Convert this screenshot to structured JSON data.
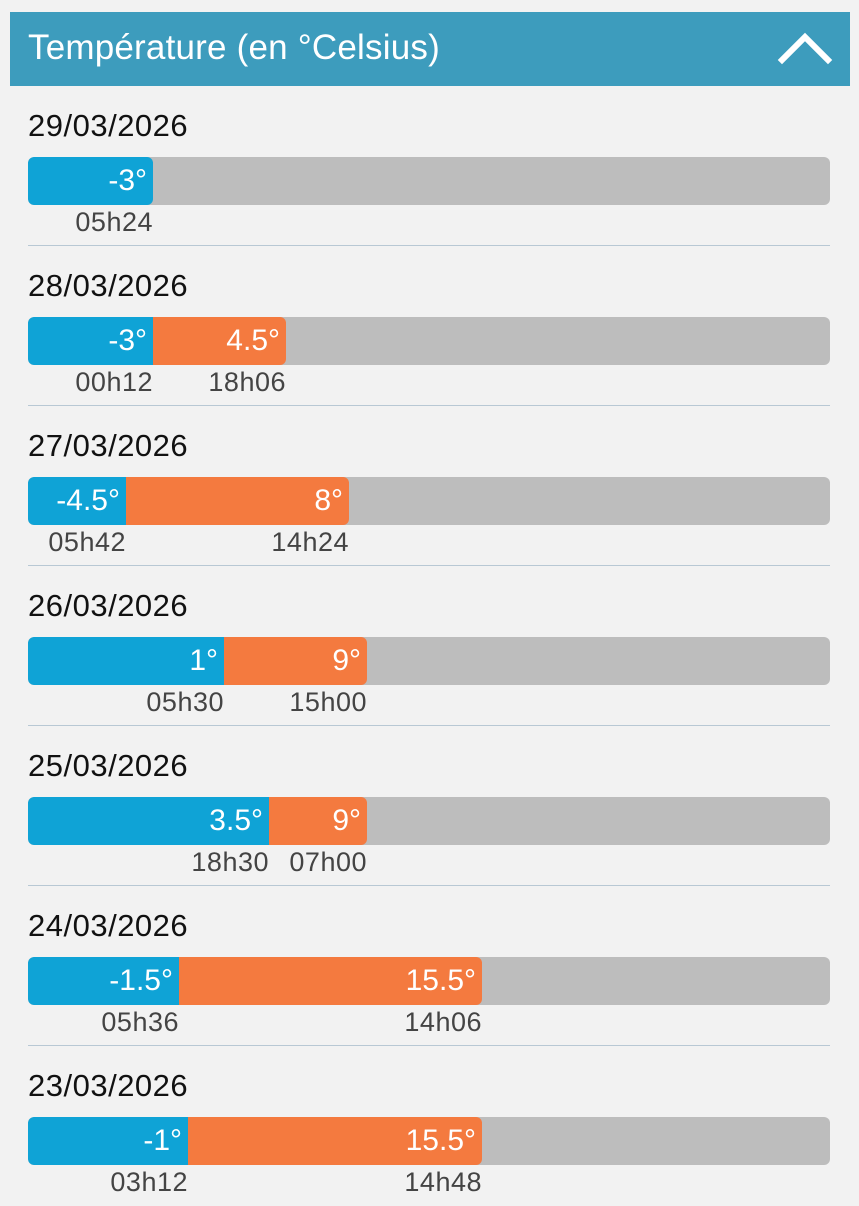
{
  "header": {
    "title": "Température (en °Celsius)",
    "collapse_icon": "chevron-up-icon"
  },
  "scale": {
    "min": -10,
    "max": 35
  },
  "colors": {
    "header_bg": "#3d9cbd",
    "min_bar": "#0fa3d6",
    "max_bar": "#f47a3f",
    "track": "#bdbdbd"
  },
  "days": [
    {
      "date": "29/03/2026",
      "min": -3,
      "min_label": "-3°",
      "min_time": "05h24",
      "max": null,
      "max_label": "",
      "max_time": ""
    },
    {
      "date": "28/03/2026",
      "min": -3,
      "min_label": "-3°",
      "min_time": "00h12",
      "max": 4.5,
      "max_label": "4.5°",
      "max_time": "18h06"
    },
    {
      "date": "27/03/2026",
      "min": -4.5,
      "min_label": "-4.5°",
      "min_time": "05h42",
      "max": 8,
      "max_label": "8°",
      "max_time": "14h24"
    },
    {
      "date": "26/03/2026",
      "min": 1,
      "min_label": "1°",
      "min_time": "05h30",
      "max": 9,
      "max_label": "9°",
      "max_time": "15h00"
    },
    {
      "date": "25/03/2026",
      "min": 3.5,
      "min_label": "3.5°",
      "min_time": "18h30",
      "max": 9,
      "max_label": "9°",
      "max_time": "07h00"
    },
    {
      "date": "24/03/2026",
      "min": -1.5,
      "min_label": "-1.5°",
      "min_time": "05h36",
      "max": 15.5,
      "max_label": "15.5°",
      "max_time": "14h06"
    },
    {
      "date": "23/03/2026",
      "min": -1,
      "min_label": "-1°",
      "min_time": "03h12",
      "max": 15.5,
      "max_label": "15.5°",
      "max_time": "14h48"
    }
  ]
}
